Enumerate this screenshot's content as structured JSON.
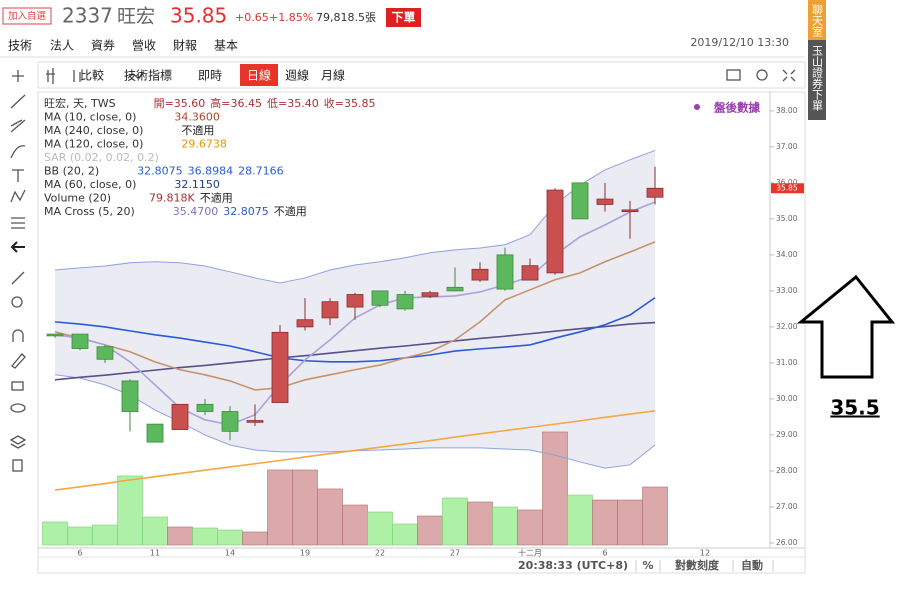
{
  "header": {
    "watch_button": "加入自選",
    "code": "2337",
    "name": "旺宏",
    "price": "35.85",
    "change": "+0.65",
    "change_pct": "+1.85%",
    "volume": "79,818.5張",
    "order_button": "下單",
    "datetime": "2019/12/10 13:30"
  },
  "side_tabs": [
    "聊天室",
    "玉山證券下單"
  ],
  "tabs": [
    "技術",
    "法人",
    "資券",
    "營收",
    "財報",
    "基本"
  ],
  "toolbar": [
    "比較",
    "技術指標",
    "即時",
    "日線",
    "週線",
    "月線"
  ],
  "toolbar_selected": 3,
  "legend": [
    {
      "label": "旺宏, 天, TWS",
      "color": "#333333",
      "values": [
        {
          "text": "開=35.60",
          "color": "#a83232"
        },
        {
          "text": "高=36.45",
          "color": "#a83232"
        },
        {
          "text": "低=35.40",
          "color": "#a83232"
        },
        {
          "text": "收=35.85",
          "color": "#a83232"
        }
      ]
    },
    {
      "label": "MA (10, close, 0)",
      "color": "#333333",
      "values": [
        {
          "text": "34.3600",
          "color": "#b5452b"
        }
      ]
    },
    {
      "label": "MA (240, close, 0)",
      "color": "#333333",
      "values": [
        {
          "text": "不適用",
          "color": "#222222"
        }
      ]
    },
    {
      "label": "MA (120, close, 0)",
      "color": "#333333",
      "values": [
        {
          "text": "29.6738",
          "color": "#e69500"
        }
      ]
    },
    {
      "label": "SAR (0.02, 0.02, 0.2)",
      "color": "#bbbbbb",
      "values": []
    },
    {
      "label": "BB (20, 2)",
      "color": "#333333",
      "values": [
        {
          "text": "32.8075",
          "color": "#2a5bd7"
        },
        {
          "text": "36.8984",
          "color": "#2a5bd7"
        },
        {
          "text": "28.7166",
          "color": "#2a5bd7"
        }
      ]
    },
    {
      "label": "MA (60, close, 0)",
      "color": "#333333",
      "values": [
        {
          "text": "32.1150",
          "color": "#1f3a93"
        }
      ]
    },
    {
      "label": "Volume (20)",
      "color": "#333333",
      "values": [
        {
          "text": "79.818K",
          "color": "#a83232"
        },
        {
          "text": "不適用",
          "color": "#222222"
        }
      ]
    },
    {
      "label": "MA Cross (5, 20)",
      "color": "#333333",
      "values": [
        {
          "text": "35.4700",
          "color": "#7a73c0"
        },
        {
          "text": "32.8075",
          "color": "#2a5bd7"
        },
        {
          "text": "不適用",
          "color": "#222222"
        }
      ]
    }
  ],
  "after_hours": "盤後數據",
  "status_bar": [
    "20:38:33 (UTC+8)",
    "%",
    "對數刻度",
    "自動"
  ],
  "annotation": "35.5",
  "chart_data": {
    "type": "candlestick",
    "categories": [
      null,
      "6",
      null,
      null,
      "11",
      null,
      null,
      "14",
      null,
      null,
      "19",
      null,
      null,
      "22",
      null,
      null,
      "27",
      null,
      null,
      "十二月",
      null,
      null,
      "6",
      null,
      null,
      null,
      "12"
    ],
    "open": [
      31.8,
      31.8,
      31.45,
      30.5,
      29.3,
      29.15,
      29.85,
      29.65,
      29.35,
      29.9,
      32.0,
      32.25,
      32.55,
      33.0,
      32.9,
      32.85,
      33.1,
      33.3,
      34.0,
      33.3,
      33.5,
      36.0,
      35.4,
      35.2,
      35.6,
      null,
      null
    ],
    "high": [
      31.8,
      31.8,
      31.5,
      30.55,
      29.3,
      29.85,
      30.0,
      29.8,
      29.85,
      32.05,
      32.8,
      32.8,
      32.95,
      33.0,
      33.0,
      33.0,
      33.65,
      33.8,
      34.2,
      33.9,
      35.85,
      36.0,
      36.0,
      35.5,
      36.45,
      null,
      null
    ],
    "low": [
      31.7,
      31.35,
      31.0,
      29.1,
      28.8,
      29.15,
      29.55,
      28.85,
      29.25,
      29.9,
      31.9,
      32.05,
      32.2,
      32.55,
      32.45,
      32.8,
      33.0,
      33.25,
      33.0,
      33.3,
      33.45,
      35.0,
      35.2,
      34.45,
      35.4,
      null,
      null
    ],
    "close": [
      31.75,
      31.4,
      31.1,
      29.65,
      28.8,
      29.85,
      29.65,
      29.1,
      29.4,
      31.85,
      32.2,
      32.7,
      32.9,
      32.6,
      32.5,
      32.95,
      33.0,
      33.6,
      33.05,
      33.7,
      35.8,
      35.0,
      35.55,
      35.25,
      35.85,
      null,
      null
    ],
    "up_color": "#c9504f",
    "up_border": "#8b2d2d",
    "down_color": "#5cb85c",
    "down_border": "#3d8b3d",
    "volume": {
      "values": [
        31.7,
        24.8,
        27.5,
        95.0,
        38.5,
        24.8,
        23.4,
        20.6,
        17.9,
        103.2,
        103.2,
        77.1,
        55.0,
        45.4,
        28.9,
        39.9,
        64.7,
        59.2,
        52.3,
        48.2,
        155.5,
        68.8,
        61.9,
        61.9,
        79.818,
        null,
        null
      ],
      "up_color": "#dba9a9",
      "up_border": "#b07070",
      "down_color": "#aef0a6",
      "down_border": "#7ccf74"
    },
    "bands": {
      "color": "#8ea2df",
      "fill": "#e4e4f0",
      "upper": [
        33.58,
        33.64,
        33.69,
        33.78,
        33.81,
        33.78,
        33.69,
        33.53,
        33.36,
        33.22,
        33.36,
        33.58,
        33.72,
        33.81,
        33.92,
        34.06,
        34.14,
        34.19,
        34.28,
        34.56,
        35.39,
        35.94,
        36.36,
        36.64,
        36.9,
        null,
        null
      ],
      "lower": [
        30.67,
        30.58,
        30.39,
        30.11,
        29.69,
        29.36,
        29.0,
        28.72,
        28.58,
        28.53,
        28.53,
        28.53,
        28.56,
        28.58,
        28.61,
        28.64,
        28.64,
        28.64,
        28.61,
        28.58,
        28.44,
        28.25,
        28.08,
        28.17,
        28.72,
        null,
        null
      ]
    },
    "lines": [
      {
        "color": "#f5a742",
        "values": [
          27.47,
          27.56,
          27.65,
          27.75,
          27.84,
          27.93,
          28.02,
          28.11,
          28.2,
          28.29,
          28.39,
          28.48,
          28.57,
          28.66,
          28.75,
          28.84,
          28.94,
          29.03,
          29.12,
          29.21,
          29.3,
          29.39,
          29.49,
          29.58,
          29.67,
          null,
          null
        ]
      },
      {
        "color": "#5a4e8c",
        "values": [
          30.53,
          30.6,
          30.66,
          30.73,
          30.8,
          30.87,
          30.93,
          31.0,
          31.07,
          31.14,
          31.2,
          31.27,
          31.34,
          31.41,
          31.47,
          31.54,
          31.61,
          31.68,
          31.74,
          31.81,
          31.88,
          31.95,
          32.01,
          32.08,
          32.12,
          null,
          null
        ]
      },
      {
        "color": "#2a5bd7",
        "values": [
          32.14,
          32.08,
          32.0,
          31.89,
          31.78,
          31.69,
          31.58,
          31.47,
          31.31,
          31.14,
          31.06,
          31.03,
          31.03,
          31.06,
          31.14,
          31.22,
          31.33,
          31.39,
          31.44,
          31.5,
          31.69,
          31.86,
          32.06,
          32.33,
          32.81,
          null,
          null
        ]
      },
      {
        "color": "#c8936a",
        "values": [
          31.86,
          31.69,
          31.5,
          31.31,
          31.03,
          30.81,
          30.67,
          30.5,
          30.25,
          30.31,
          30.53,
          30.67,
          30.81,
          30.94,
          31.14,
          31.31,
          31.64,
          32.14,
          32.75,
          33.03,
          33.31,
          33.5,
          33.81,
          34.08,
          34.36,
          null,
          null
        ]
      },
      {
        "color": "#a9a3d9",
        "values": [
          31.78,
          31.69,
          31.5,
          31.03,
          30.39,
          29.75,
          29.42,
          29.28,
          29.56,
          30.39,
          31.08,
          31.64,
          32.25,
          32.61,
          32.81,
          32.83,
          32.86,
          32.97,
          33.17,
          33.39,
          34.0,
          34.5,
          34.83,
          35.19,
          35.47,
          null,
          null
        ]
      }
    ],
    "ylim": [
      25.86,
      38.44
    ],
    "yticks": [
      {
        "value": 38,
        "label": "38.00"
      },
      {
        "value": 37,
        "label": "37.00"
      },
      {
        "value": 36,
        "label": "36.00"
      },
      {
        "value": 35,
        "label": "35.00"
      },
      {
        "value": 34,
        "label": "34.00"
      },
      {
        "value": 33,
        "label": "33.00"
      },
      {
        "value": 32,
        "label": "32.00"
      },
      {
        "value": 31,
        "label": "31.00"
      },
      {
        "value": 30,
        "label": "30.00"
      },
      {
        "value": 29,
        "label": "29.00"
      },
      {
        "value": 28,
        "label": "28.00"
      },
      {
        "value": 27,
        "label": "27.00"
      },
      {
        "value": 26,
        "label": "26.00"
      }
    ],
    "last_price": 35.85,
    "last_price_color": "#e8342b"
  }
}
